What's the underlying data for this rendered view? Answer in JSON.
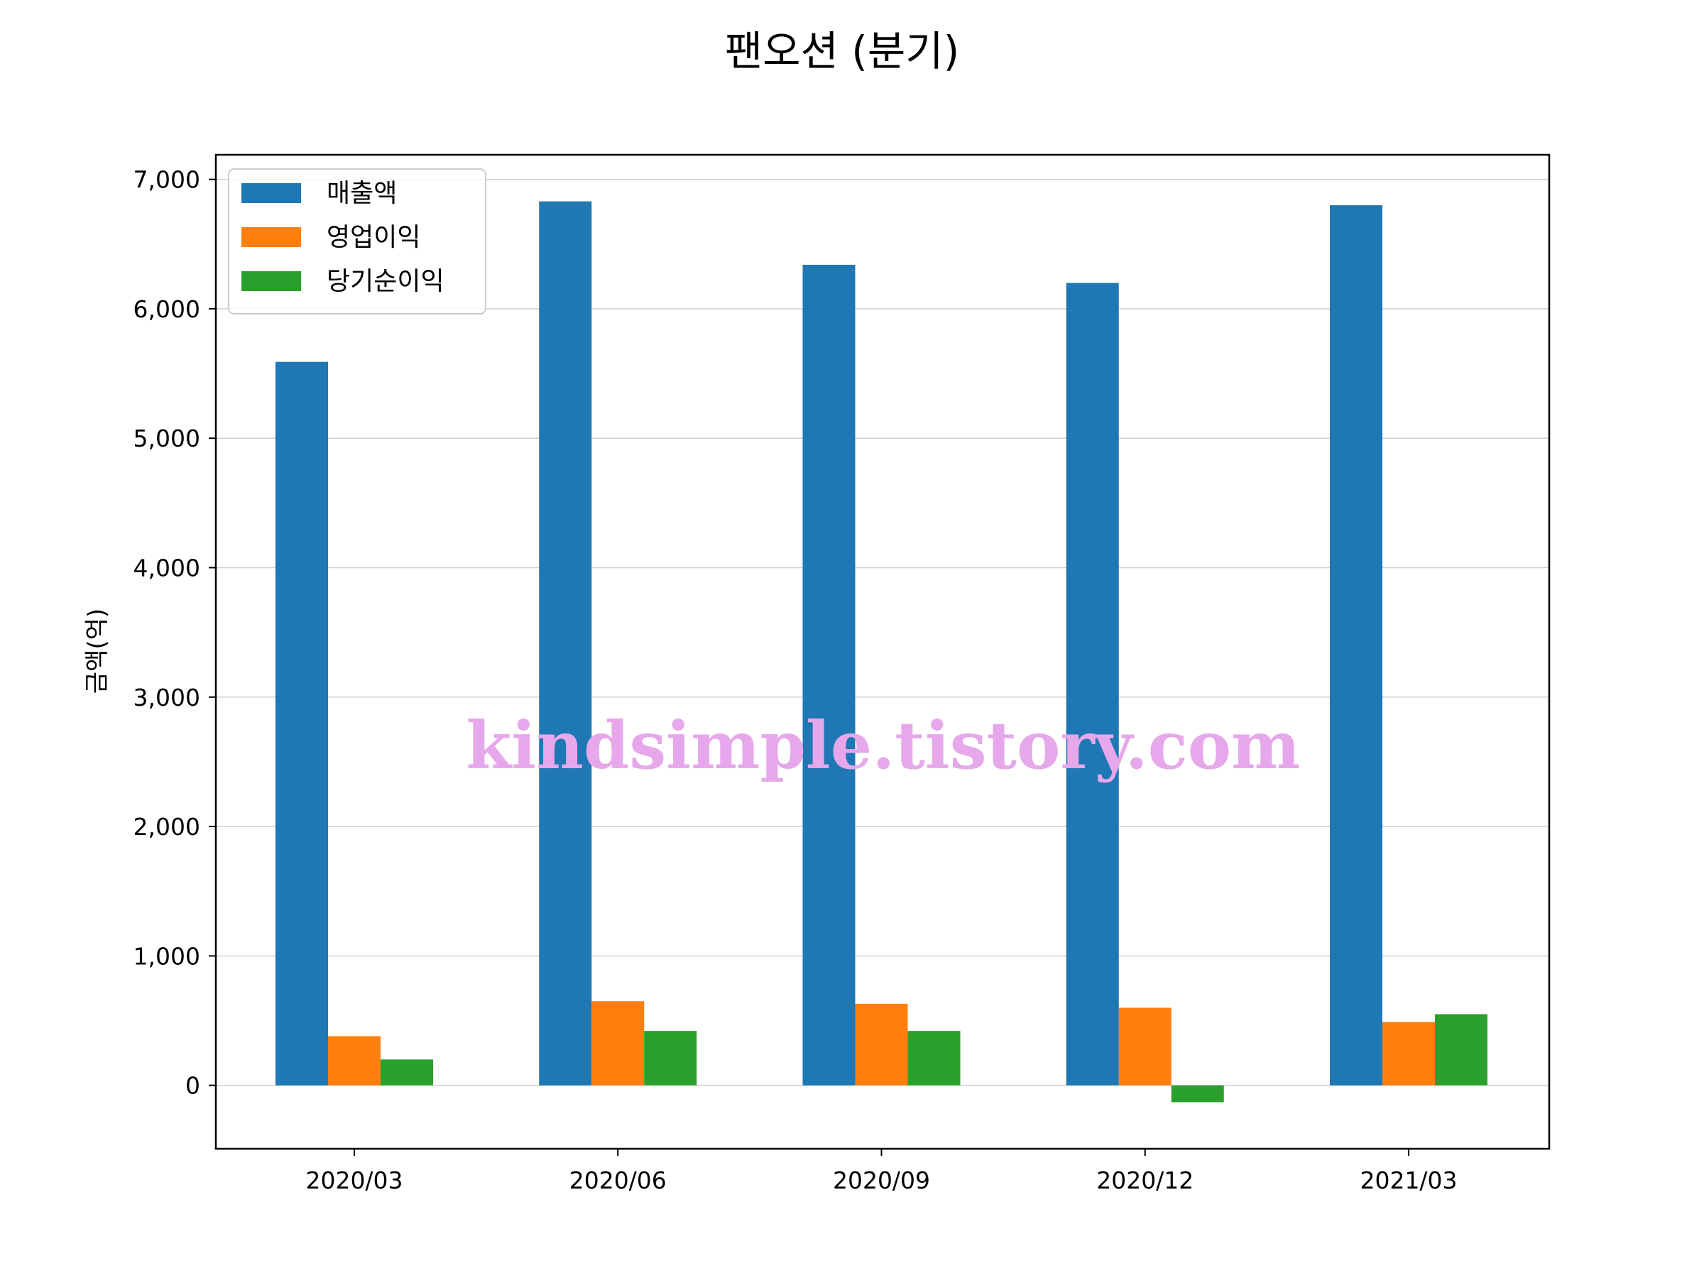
{
  "chart_data": {
    "type": "bar",
    "title": "팬오션 (분기)",
    "xlabel": "",
    "ylabel": "금액(억)",
    "categories": [
      "2020/03",
      "2020/06",
      "2020/09",
      "2020/12",
      "2021/03"
    ],
    "series": [
      {
        "name": "매출액",
        "color": "#1f77b4",
        "values": [
          5590,
          6830,
          6340,
          6200,
          6800
        ]
      },
      {
        "name": "영업이익",
        "color": "#ff7f0e",
        "values": [
          380,
          650,
          630,
          600,
          490
        ]
      },
      {
        "name": "당기순이익",
        "color": "#2ca02c",
        "values": [
          200,
          420,
          420,
          -130,
          550
        ]
      }
    ],
    "ylim": [
      -490,
      7190
    ],
    "yticks": [
      0,
      1000,
      2000,
      3000,
      4000,
      5000,
      6000,
      7000
    ],
    "ytick_labels": [
      "0",
      "1,000",
      "2,000",
      "3,000",
      "4,000",
      "5,000",
      "6,000",
      "7,000"
    ],
    "grid": "horizontal",
    "legend_position": "top-left"
  },
  "watermark": "kindsimple.tistory.com"
}
